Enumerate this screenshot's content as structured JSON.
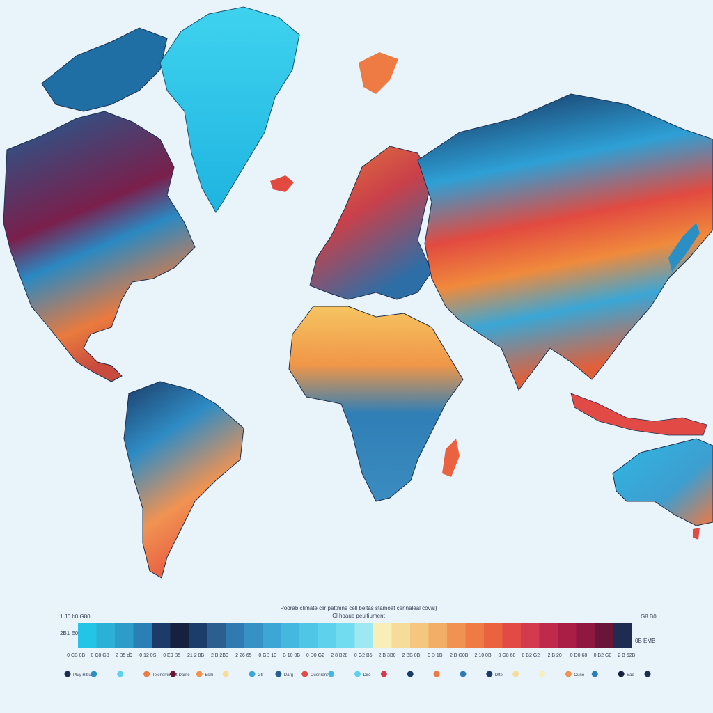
{
  "map": {
    "title": "Poorab climate clir pattmns cell beitas stamoat cennaleal coval)",
    "subtitle": "Cl hoaue peultiument",
    "background": "#e8f4fa",
    "continents": [
      {
        "name": "north-america",
        "color": "#1f6fa5"
      },
      {
        "name": "greenland",
        "color": "#27c3ea"
      },
      {
        "name": "south-america",
        "color": "#e87a3a"
      },
      {
        "name": "europe",
        "color": "#c94b3a"
      },
      {
        "name": "africa",
        "color": "#f2a545"
      },
      {
        "name": "asia",
        "color": "#e6633a"
      },
      {
        "name": "australia",
        "color": "#2fa6d8"
      }
    ]
  },
  "legend": {
    "left_top_label": "1 J0 b0 G80",
    "left_mid_label": "2B1 E0",
    "right_top_label": "G8 B0",
    "right_mid_label": "0B EMB",
    "colors": [
      "#22c5e6",
      "#2bb0d8",
      "#2e9cc9",
      "#2a7fb4",
      "#1e3a68",
      "#15213f",
      "#1c3d6a",
      "#2a5f90",
      "#2f7ab0",
      "#3691c4",
      "#3ea6d4",
      "#45b8e0",
      "#4fc6e6",
      "#5ed2ec",
      "#71dcf0",
      "#9ee8f2",
      "#f8eeb8",
      "#f6dc98",
      "#f4c67e",
      "#f2ad66",
      "#f09352",
      "#ee7a44",
      "#ea6240",
      "#e24a46",
      "#d43a4e",
      "#c02a4a",
      "#a81e44",
      "#8e1840",
      "#6a1438",
      "#1f2c52"
    ],
    "tick_labels": [
      "0 CB 0B",
      "0 C8 G8",
      "2 B5 d9",
      "0 12 0S",
      "0 E9 B5",
      "21 2 8B",
      "2 B 2B0",
      "2 26 65",
      "0 GB 10",
      "B 10 0B",
      "0 D0 G2",
      "2 8 B28",
      "0 G2 B5",
      "2 B 3B0",
      "2 BB 0B",
      "0 D 1B",
      "2 B G0B",
      "2 10 0B",
      "0 G8 68",
      "0 B2 G2",
      "2 B 20",
      "0 D0 68",
      "0 B2 G0",
      "2 B 62B"
    ],
    "swatches": [
      {
        "color": "#1f2c52",
        "label": "Pluy Ribuis"
      },
      {
        "color": "#2a8fc4",
        "label": ""
      },
      {
        "color": "#5ed2ec",
        "label": ""
      },
      {
        "color": "#ee7a44",
        "label": "Telenemment"
      },
      {
        "color": "#6a1438",
        "label": "Darrle"
      },
      {
        "color": "#f09352",
        "label": "Esm"
      },
      {
        "color": "#f6dc98",
        "label": ""
      },
      {
        "color": "#3ea6d4",
        "label": "Gtr"
      },
      {
        "color": "#2a5f90",
        "label": "Darg"
      },
      {
        "color": "#e24a46",
        "label": "Ouenrant"
      },
      {
        "color": "#45b8e0",
        "label": ""
      },
      {
        "color": "#5ed2ec",
        "label": "Diro"
      },
      {
        "color": "#d43a4e",
        "label": ""
      },
      {
        "color": "#1c3d6a",
        "label": ""
      },
      {
        "color": "#ee7a44",
        "label": ""
      },
      {
        "color": "#2f7ab0",
        "label": ""
      },
      {
        "color": "#1e3a68",
        "label": "Dtte"
      },
      {
        "color": "#f6dc98",
        "label": ""
      },
      {
        "color": "#f8eeb8",
        "label": ""
      },
      {
        "color": "#f09352",
        "label": "Ouno"
      },
      {
        "color": "#2a7fb4",
        "label": ""
      },
      {
        "color": "#15213f",
        "label": "Sae"
      },
      {
        "color": "#1f2c52",
        "label": ""
      }
    ]
  }
}
